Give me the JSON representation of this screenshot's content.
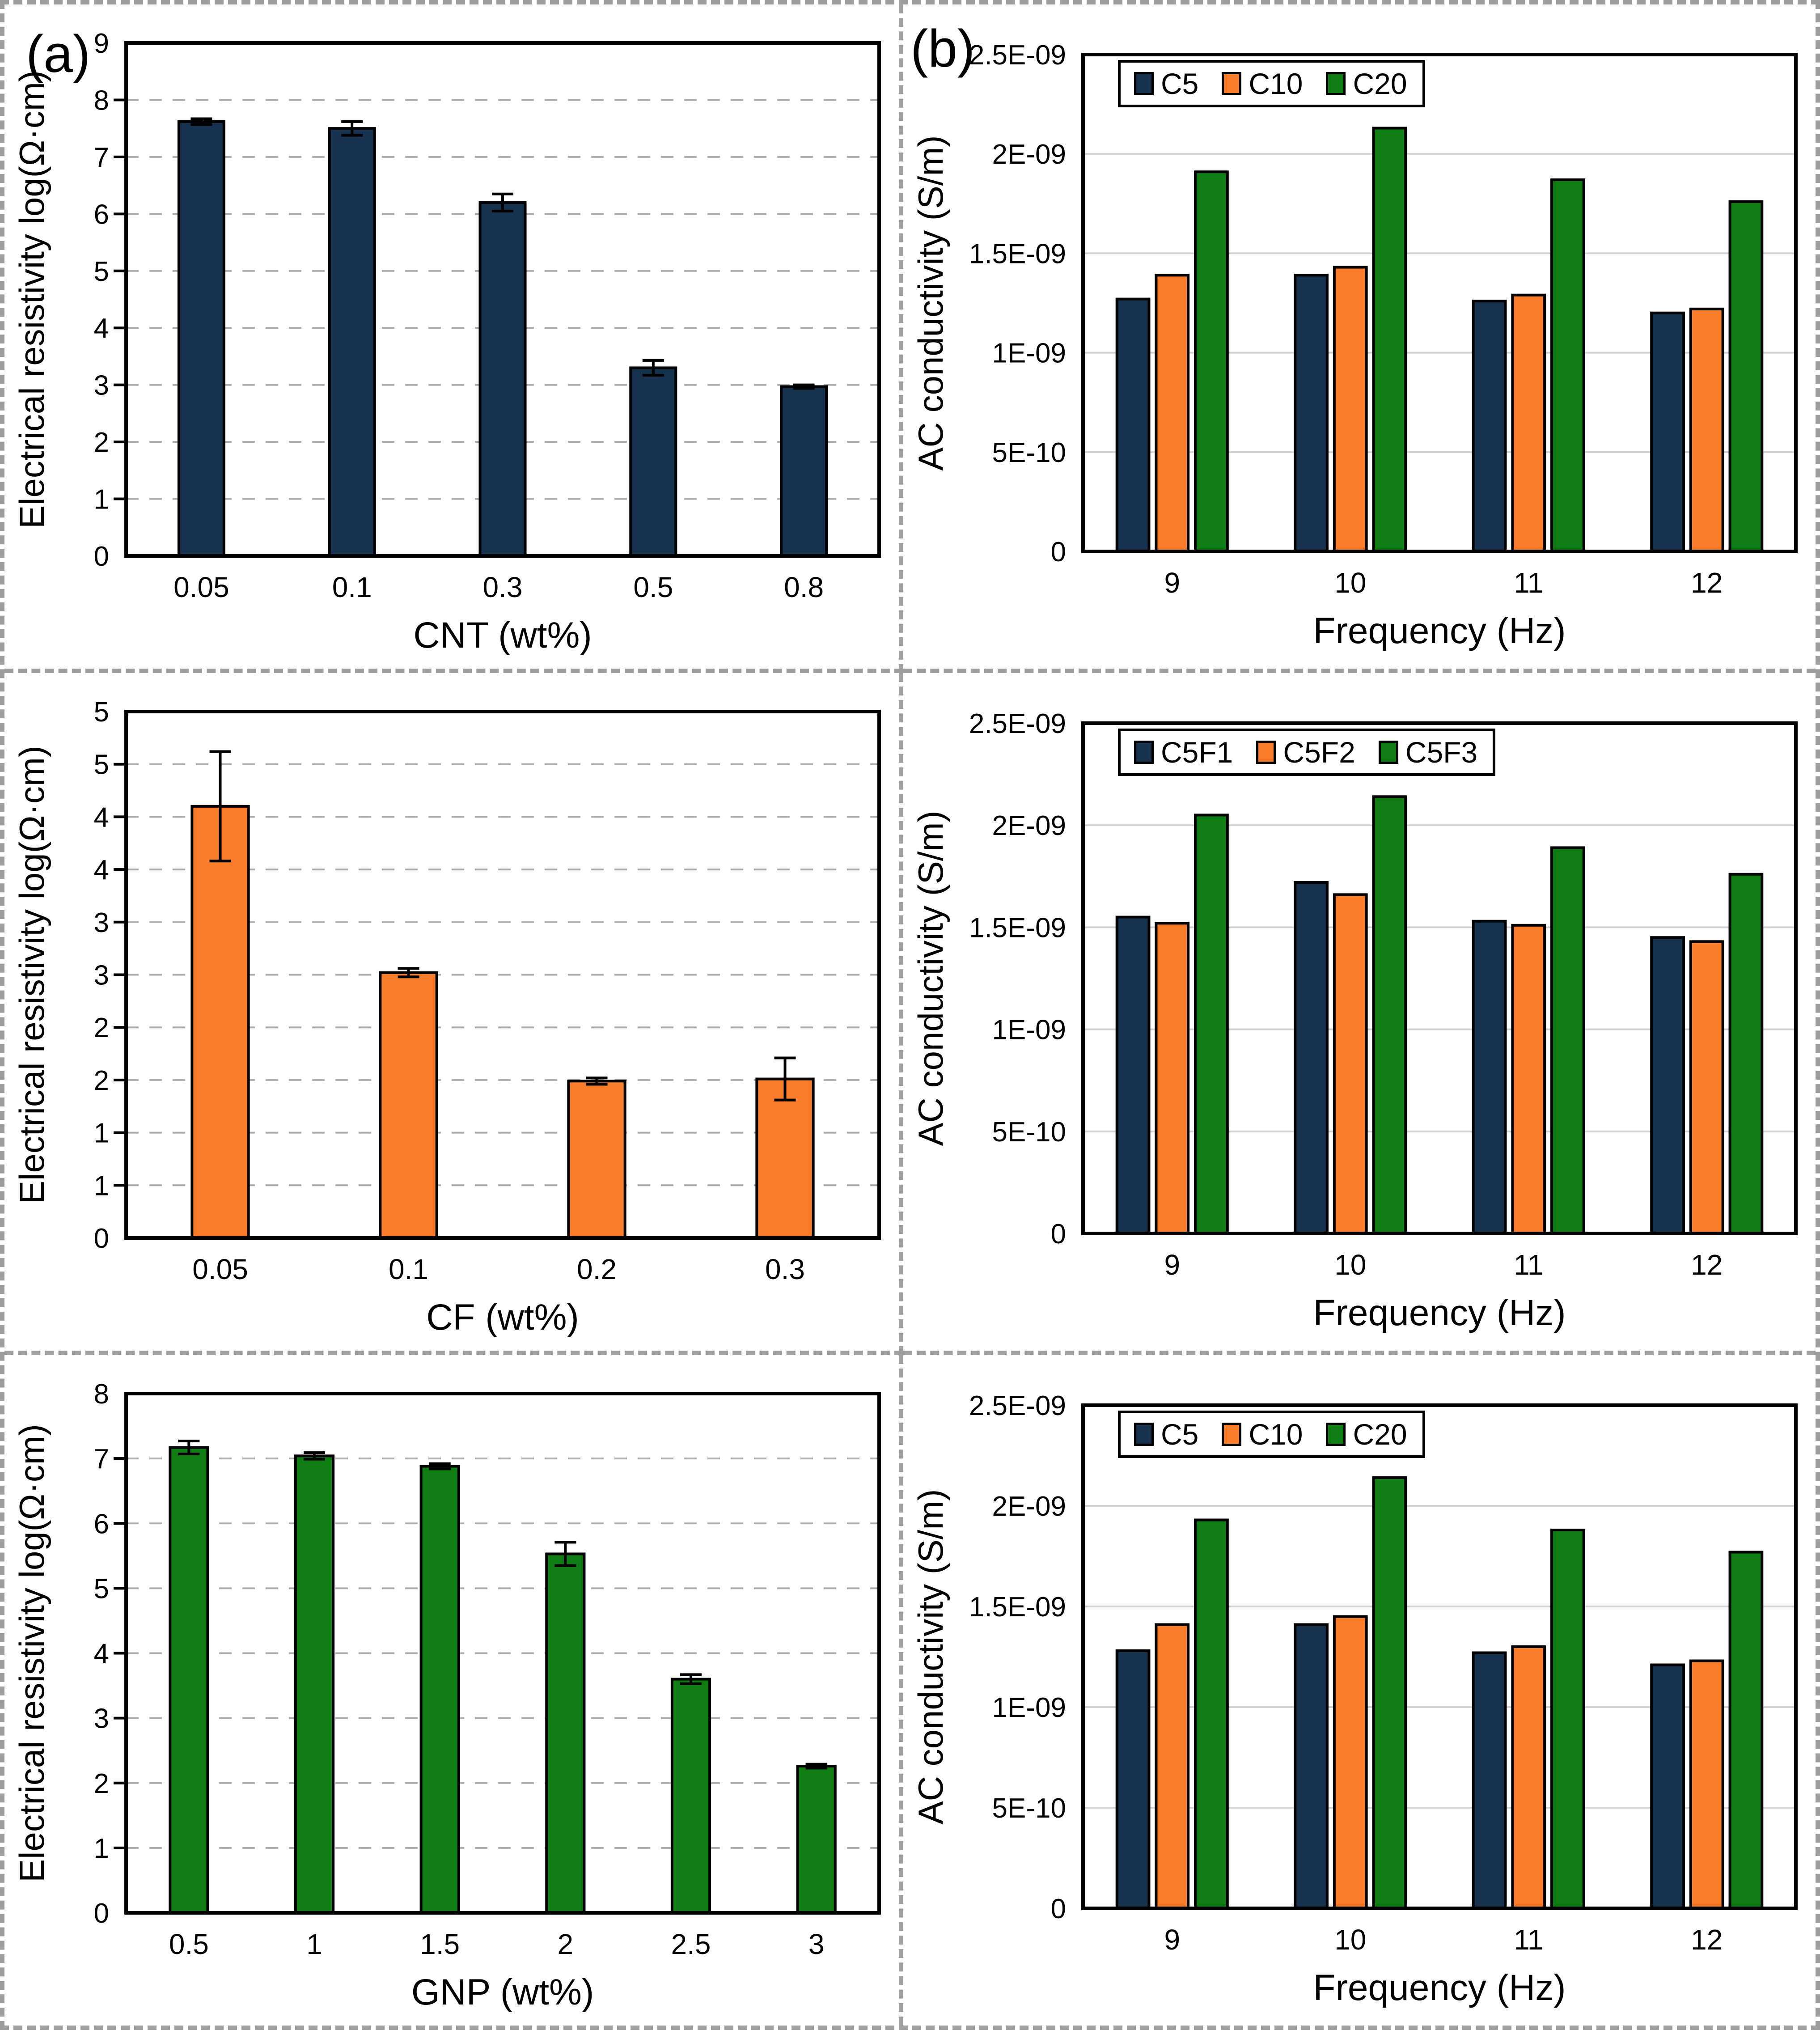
{
  "figure": {
    "panels": [
      {
        "label": "(a)"
      },
      {
        "label": "(b)"
      }
    ]
  },
  "colors": {
    "navy": "#16324E",
    "orange": "#F87C2A",
    "green": "#0F7D13",
    "bar_outline": "#000000",
    "grid_dashed": "#ABABAB",
    "grid_solid": "#D2D2D2",
    "frame_dash": "#9E9E9E"
  },
  "chart_data": [
    {
      "id": "resistivity-cnt",
      "type": "bar",
      "layout": "left",
      "grid": "dashed",
      "axis_ticks": true,
      "xlabel": "CNT (wt%)",
      "ylabel": "Electrical resistivity log(Ω·cm)",
      "categories": [
        "0.05",
        "0.1",
        "0.3",
        "0.5",
        "0.8"
      ],
      "values": [
        7.62,
        7.5,
        6.2,
        3.3,
        2.97
      ],
      "errors": [
        0.05,
        0.12,
        0.15,
        0.13,
        0.03
      ],
      "bar_color": "#16324E",
      "ylim": [
        0,
        9
      ],
      "ytick_values": [
        0,
        1,
        2,
        3,
        4,
        5,
        6,
        7,
        8,
        9
      ],
      "ytick_labels": [
        "0",
        "1",
        "2",
        "3",
        "4",
        "5",
        "6",
        "7",
        "8",
        "9"
      ],
      "legend": null
    },
    {
      "id": "ac-conductivity-top",
      "type": "grouped-bar",
      "layout": "right",
      "grid": "solid",
      "axis_ticks": false,
      "xlabel": "Frequency (Hz)",
      "ylabel": "AC conductivity (S/m)",
      "categories": [
        "9",
        "10",
        "11",
        "12"
      ],
      "series": [
        {
          "name": "C5",
          "color": "#16324E",
          "values": [
            1.27e-09,
            1.39e-09,
            1.26e-09,
            1.2e-09
          ]
        },
        {
          "name": "C10",
          "color": "#F87C2A",
          "values": [
            1.39e-09,
            1.43e-09,
            1.29e-09,
            1.22e-09
          ]
        },
        {
          "name": "C20",
          "color": "#0F7D13",
          "values": [
            1.91e-09,
            2.13e-09,
            1.87e-09,
            1.76e-09
          ]
        }
      ],
      "ylim": [
        0,
        2.5e-09
      ],
      "ytick_values": [
        0,
        5e-10,
        1e-09,
        1.5e-09,
        2e-09,
        2.5e-09
      ],
      "ytick_labels": [
        "0",
        "5E-10",
        "1E-09",
        "1.5E-09",
        "2E-09",
        "2.5E-09"
      ],
      "legend": "top-left-inside"
    },
    {
      "id": "resistivity-cf",
      "type": "bar",
      "layout": "left",
      "grid": "dashed",
      "axis_ticks": true,
      "xlabel": "CF (wt%)",
      "ylabel": "Electrical resistivity log(Ω·cm)",
      "categories": [
        "0.05",
        "0.1",
        "0.2",
        "0.3"
      ],
      "values": [
        4.1,
        2.52,
        1.49,
        1.51
      ],
      "errors": [
        0.52,
        0.04,
        0.03,
        0.2
      ],
      "bar_color": "#F87C2A",
      "ylim": [
        0,
        5
      ],
      "ytick_values": [
        0,
        0.5,
        1,
        1.5,
        2,
        2.5,
        3,
        3.5,
        4,
        4.5,
        5
      ],
      "ytick_labels": [
        "0",
        "1",
        "1",
        "2",
        "2",
        "3",
        "3",
        "4",
        "4",
        "5",
        "5"
      ],
      "legend": null
    },
    {
      "id": "ac-conductivity-mid",
      "type": "grouped-bar",
      "layout": "right",
      "grid": "solid",
      "axis_ticks": false,
      "xlabel": "Frequency (Hz)",
      "ylabel": "AC conductivity (S/m)",
      "categories": [
        "9",
        "10",
        "11",
        "12"
      ],
      "series": [
        {
          "name": "C5F1",
          "color": "#16324E",
          "values": [
            1.55e-09,
            1.72e-09,
            1.53e-09,
            1.45e-09
          ]
        },
        {
          "name": "C5F2",
          "color": "#F87C2A",
          "values": [
            1.52e-09,
            1.66e-09,
            1.51e-09,
            1.43e-09
          ]
        },
        {
          "name": "C5F3",
          "color": "#0F7D13",
          "values": [
            2.05e-09,
            2.14e-09,
            1.89e-09,
            1.76e-09
          ]
        }
      ],
      "ylim": [
        0,
        2.5e-09
      ],
      "ytick_values": [
        0,
        5e-10,
        1e-09,
        1.5e-09,
        2e-09,
        2.5e-09
      ],
      "ytick_labels": [
        "0",
        "5E-10",
        "1E-09",
        "1.5E-09",
        "2E-09",
        "2.5E-09"
      ],
      "legend": "top-left-inside"
    },
    {
      "id": "resistivity-gnp",
      "type": "bar",
      "layout": "left",
      "grid": "dashed",
      "axis_ticks": true,
      "xlabel": "GNP (wt%)",
      "ylabel": "Electrical resistivity log(Ω·cm)",
      "categories": [
        "0.5",
        "1",
        "1.5",
        "2",
        "2.5",
        "3"
      ],
      "values": [
        7.17,
        7.04,
        6.88,
        5.53,
        3.6,
        2.26
      ],
      "errors": [
        0.1,
        0.05,
        0.04,
        0.18,
        0.07,
        0.03
      ],
      "bar_color": "#0F7D13",
      "ylim": [
        0,
        8
      ],
      "ytick_values": [
        0,
        1,
        2,
        3,
        4,
        5,
        6,
        7,
        8
      ],
      "ytick_labels": [
        "0",
        "1",
        "2",
        "3",
        "4",
        "5",
        "6",
        "7",
        "8"
      ],
      "legend": null
    },
    {
      "id": "ac-conductivity-bottom",
      "type": "grouped-bar",
      "layout": "right",
      "grid": "solid",
      "axis_ticks": false,
      "xlabel": "Frequency (Hz)",
      "ylabel": "AC conductivity (S/m)",
      "categories": [
        "9",
        "10",
        "11",
        "12"
      ],
      "series": [
        {
          "name": "C5",
          "color": "#16324E",
          "values": [
            1.28e-09,
            1.41e-09,
            1.27e-09,
            1.21e-09
          ]
        },
        {
          "name": "C10",
          "color": "#F87C2A",
          "values": [
            1.41e-09,
            1.45e-09,
            1.3e-09,
            1.23e-09
          ]
        },
        {
          "name": "C20",
          "color": "#0F7D13",
          "values": [
            1.93e-09,
            2.14e-09,
            1.88e-09,
            1.77e-09
          ]
        }
      ],
      "ylim": [
        0,
        2.5e-09
      ],
      "ytick_values": [
        0,
        5e-10,
        1e-09,
        1.5e-09,
        2e-09,
        2.5e-09
      ],
      "ytick_labels": [
        "0",
        "5E-10",
        "1E-09",
        "1.5E-09",
        "2E-09",
        "2.5E-09"
      ],
      "legend": "top-left-inside"
    }
  ]
}
